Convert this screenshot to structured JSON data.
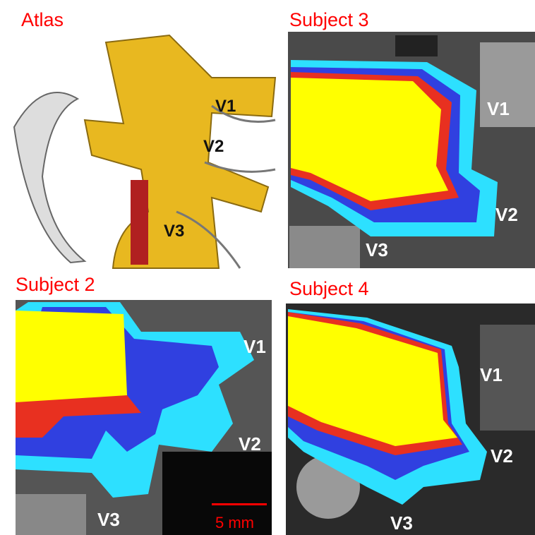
{
  "panels": [
    {
      "title": "Atlas",
      "labels": [
        "V1",
        "V2",
        "V3"
      ]
    },
    {
      "title": "Subject 3",
      "labels": [
        "V1",
        "V2",
        "V3"
      ]
    },
    {
      "title": "Subject 2",
      "labels": [
        "V1",
        "V2",
        "V3"
      ],
      "scale_bar": "5 mm"
    },
    {
      "title": "Subject 4",
      "labels": [
        "V1",
        "V2",
        "V3"
      ]
    }
  ]
}
